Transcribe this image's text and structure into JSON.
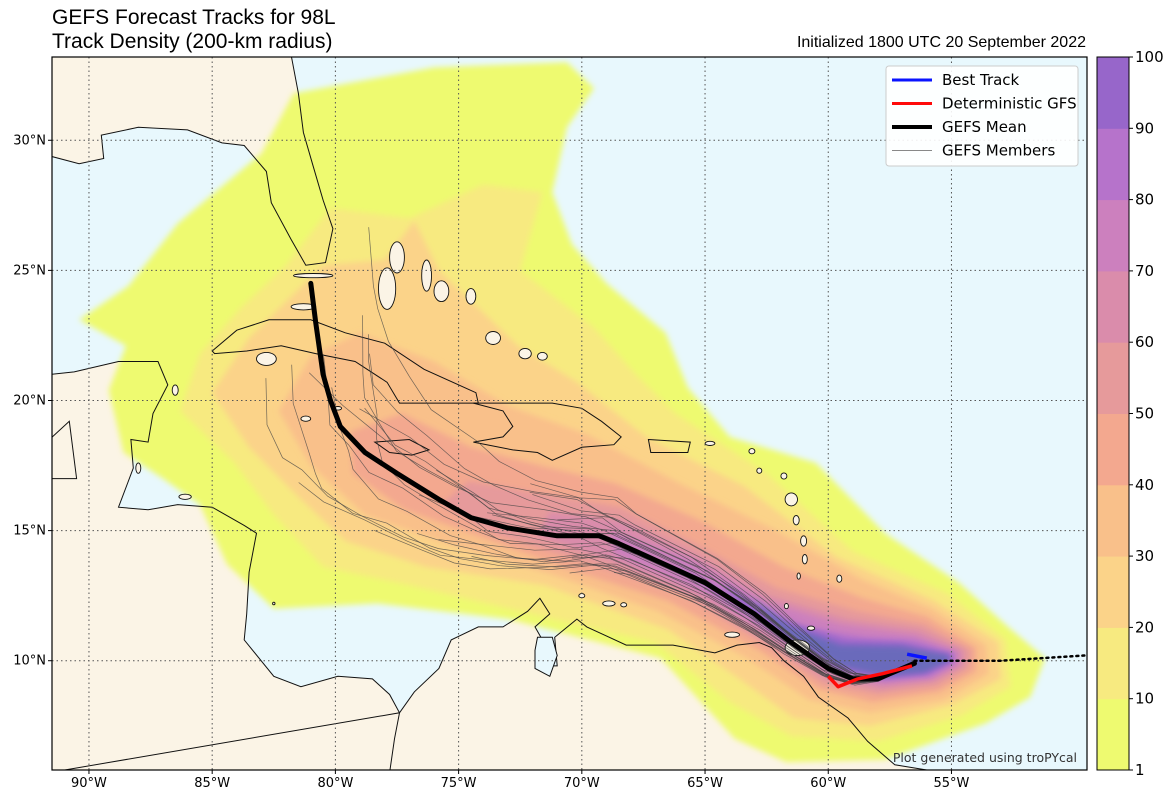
{
  "title": {
    "line1": "GEFS Forecast Tracks for 98L",
    "line2": "Track Density (200-km radius)",
    "initialized": "Initialized 1800 UTC 20 September 2022"
  },
  "map": {
    "lon_range": [
      -91.5,
      -49.5
    ],
    "lat_range": [
      5.8,
      33.2
    ],
    "grid": true,
    "ocean_color": "#e8f8fd",
    "land_color": "#fbf4e6"
  },
  "axes": {
    "lon_ticks": [
      {
        "value": -90,
        "label": "90°W"
      },
      {
        "value": -85,
        "label": "85°W"
      },
      {
        "value": -80,
        "label": "80°W"
      },
      {
        "value": -75,
        "label": "75°W"
      },
      {
        "value": -70,
        "label": "70°W"
      },
      {
        "value": -65,
        "label": "65°W"
      },
      {
        "value": -60,
        "label": "60°W"
      },
      {
        "value": -55,
        "label": "55°W"
      }
    ],
    "lat_ticks": [
      {
        "value": 10,
        "label": "10°N"
      },
      {
        "value": 15,
        "label": "15°N"
      },
      {
        "value": 20,
        "label": "20°N"
      },
      {
        "value": 25,
        "label": "25°N"
      },
      {
        "value": 30,
        "label": "30°N"
      }
    ]
  },
  "legend": {
    "position": "top-right",
    "items": [
      {
        "label": "Best Track",
        "color": "#0a14ff",
        "width": 3
      },
      {
        "label": "Deterministic GFS",
        "color": "#ff0a0a",
        "width": 3
      },
      {
        "label": "GEFS Mean",
        "color": "#000000",
        "width": 4
      },
      {
        "label": "GEFS Members",
        "color": "#888888",
        "width": 1
      }
    ]
  },
  "colorbar": {
    "ticks": [
      "1",
      "10",
      "20",
      "30",
      "40",
      "50",
      "60",
      "70",
      "80",
      "90",
      "100"
    ],
    "colors": [
      "#eefa70",
      "#f7ea80",
      "#fbd389",
      "#f9c08a",
      "#f3a88f",
      "#e69a9b",
      "#da8cab",
      "#cc80be",
      "#b673cb",
      "#9766ca",
      "#6b6bbb"
    ]
  },
  "credit": "Plot generated using troPYcal",
  "chart_data": {
    "type": "map",
    "tracks": {
      "best_track": {
        "color": "#0a14ff",
        "lon": [
          -56.8,
          -56.0
        ],
        "lat": [
          10.25,
          10.1
        ]
      },
      "deterministic_gfs": {
        "color": "#ff0a0a",
        "lon": [
          -60.0,
          -59.6,
          -58.8,
          -57.8,
          -56.6
        ],
        "lat": [
          9.4,
          9.0,
          9.3,
          9.5,
          9.8
        ]
      },
      "gefs_mean": {
        "color": "#000000",
        "lon": [
          -81.0,
          -80.8,
          -80.5,
          -80.2,
          -79.8,
          -78.8,
          -77.5,
          -75.8,
          -74.5,
          -73.0,
          -71.0,
          -69.3,
          -68.5,
          -65.0,
          -63.0,
          -61.5,
          -60.0,
          -59.0,
          -58.0,
          -56.5
        ],
        "lat": [
          24.5,
          23.0,
          21.0,
          20.0,
          19.0,
          18.0,
          17.2,
          16.2,
          15.5,
          15.1,
          14.8,
          14.8,
          14.5,
          13.0,
          11.8,
          10.7,
          9.7,
          9.3,
          9.3,
          9.9
        ]
      },
      "motion_extrapolation": {
        "lon": [
          -56.5,
          -53.0,
          -49.6
        ],
        "lat": [
          10.0,
          10.0,
          10.2
        ]
      }
    },
    "density_levels": [
      1,
      10,
      20,
      30,
      40,
      50,
      60,
      70,
      80,
      90,
      100
    ]
  }
}
